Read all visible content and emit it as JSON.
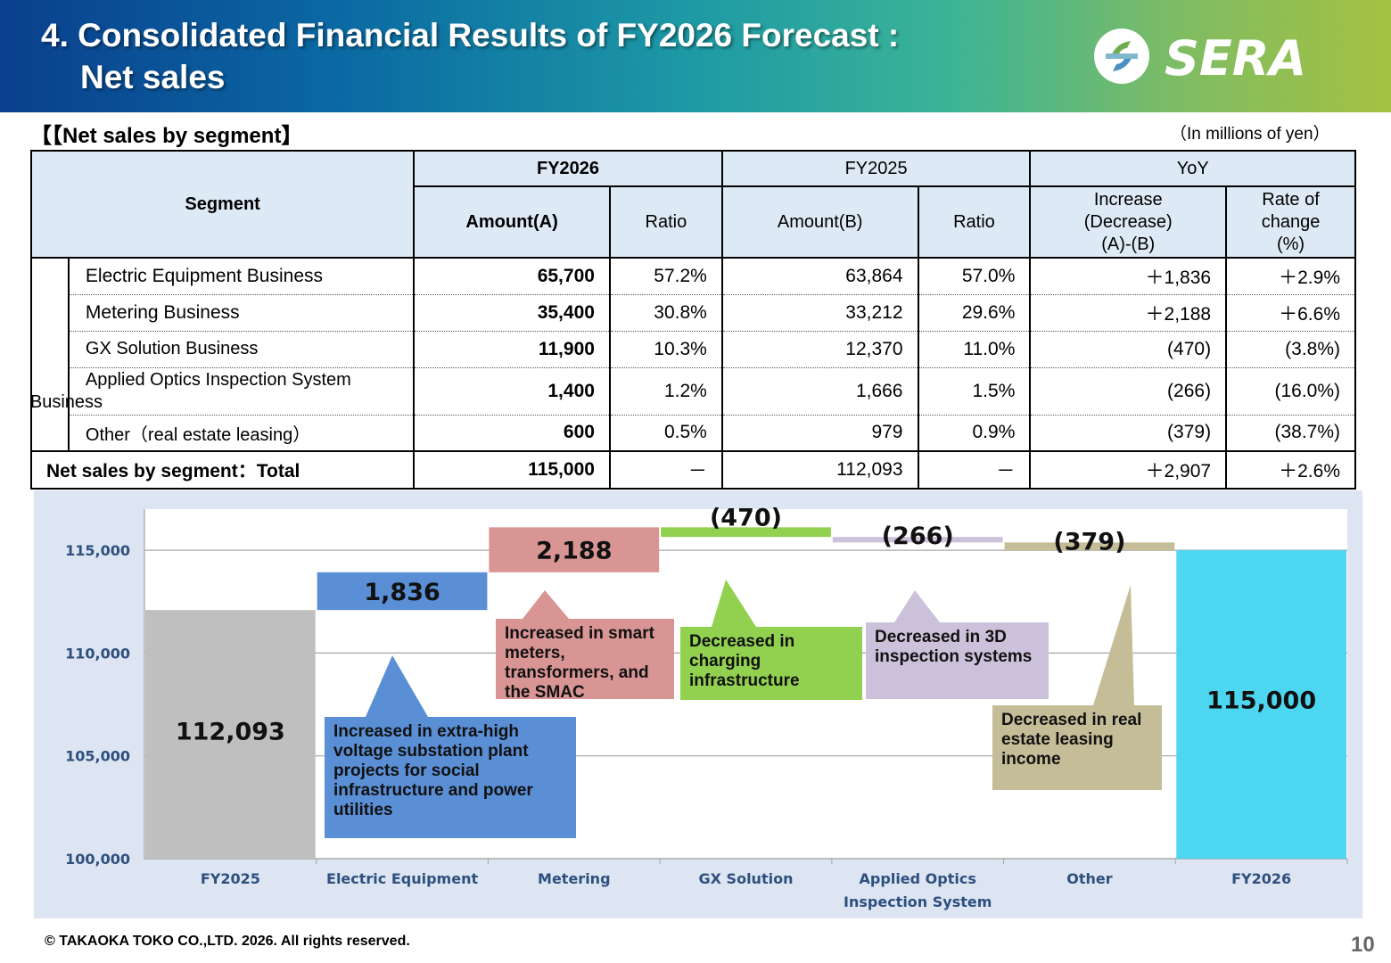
{
  "header": {
    "title_line1": "4. Consolidated Financial Results of FY2026 Forecast :",
    "title_line2": "Net sales",
    "logo_text": "SERA"
  },
  "section_label": "【【Net sales by segment】",
  "unit_label": "（In millions of yen）",
  "table": {
    "head": {
      "segment": "Segment",
      "fy2026": "FY2026",
      "fy2025": "FY2025",
      "yoy": "YoY",
      "amount_a": "Amount(A)",
      "ratio": "Ratio",
      "amount_b": "Amount(B)",
      "ratio_b": "Ratio",
      "increase": "Increase\n(Decrease)\n(A)-(B)",
      "rate": "Rate of\nchange\n(%)"
    },
    "rows": [
      {
        "name": "Electric Equipment Business",
        "a": "65,700",
        "ra": "57.2%",
        "b": "63,864",
        "rb": "57.0%",
        "inc": "＋1,836",
        "rate": "＋2.9%"
      },
      {
        "name": "Metering Business",
        "a": "35,400",
        "ra": "30.8%",
        "b": "33,212",
        "rb": "29.6%",
        "inc": "＋2,188",
        "rate": "＋6.6%"
      },
      {
        "name": "GX Solution Business",
        "a": "11,900",
        "ra": "10.3%",
        "b": "12,370",
        "rb": "11.0%",
        "inc": "(470)",
        "rate": "(3.8%)"
      },
      {
        "name_line1": "Applied Optics Inspection System",
        "name_line2": "Business",
        "a": "1,400",
        "ra": "1.2%",
        "b": "1,666",
        "rb": "1.5%",
        "inc": "(266)",
        "rate": "(16.0%)"
      },
      {
        "name": "Other（real estate leasing）",
        "a": "600",
        "ra": "0.5%",
        "b": "979",
        "rb": "0.9%",
        "inc": "(379)",
        "rate": "(38.7%)"
      }
    ],
    "total": {
      "name": "Net sales by segment：Total",
      "a": "115,000",
      "ra": "－",
      "b": "112,093",
      "rb": "－",
      "inc": "＋2,907",
      "rate": "＋2.6%"
    }
  },
  "chart_data": {
    "type": "bar",
    "subtype": "waterfall",
    "categories": [
      "FY2025",
      "Electric Equipment",
      "Metering",
      "GX Solution",
      "Applied Optics Inspection System",
      "Other",
      "FY2026"
    ],
    "category_label_lines": [
      [
        "FY2025"
      ],
      [
        "Electric Equipment"
      ],
      [
        "Metering"
      ],
      [
        "GX Solution"
      ],
      [
        "Applied Optics",
        "Inspection System"
      ],
      [
        "Other"
      ],
      [
        "FY2026"
      ]
    ],
    "values": [
      112093,
      1836,
      2188,
      -470,
      -266,
      -379,
      115000
    ],
    "data_labels": [
      "112,093",
      "1,836",
      "2,188",
      "(470)",
      "(266)",
      "(379)",
      "115,000"
    ],
    "colors": [
      "#bfbfbf",
      "#5a8fd6",
      "#d99594",
      "#92d050",
      "#ccc1da",
      "#c4bd97",
      "#4dd6f0"
    ],
    "ylim": [
      100000,
      117000
    ],
    "yticks": [
      100000,
      105000,
      110000,
      115000
    ],
    "ytick_labels": [
      "100,000",
      "105,000",
      "110,000",
      "115,000"
    ],
    "grid": true,
    "callouts": [
      "Increased  in extra-high voltage substation plant projects for social infrastructure and power utilities",
      "Increased in smart meters, transformers, and the SMAC",
      "Decreased in charging infrastructure",
      "Decreased in 3D inspection systems",
      "Decreased in real estate leasing income"
    ]
  },
  "footer": "© TAKAOKA TOKO CO.,LTD. 2026. All rights reserved.",
  "page_number": "10"
}
